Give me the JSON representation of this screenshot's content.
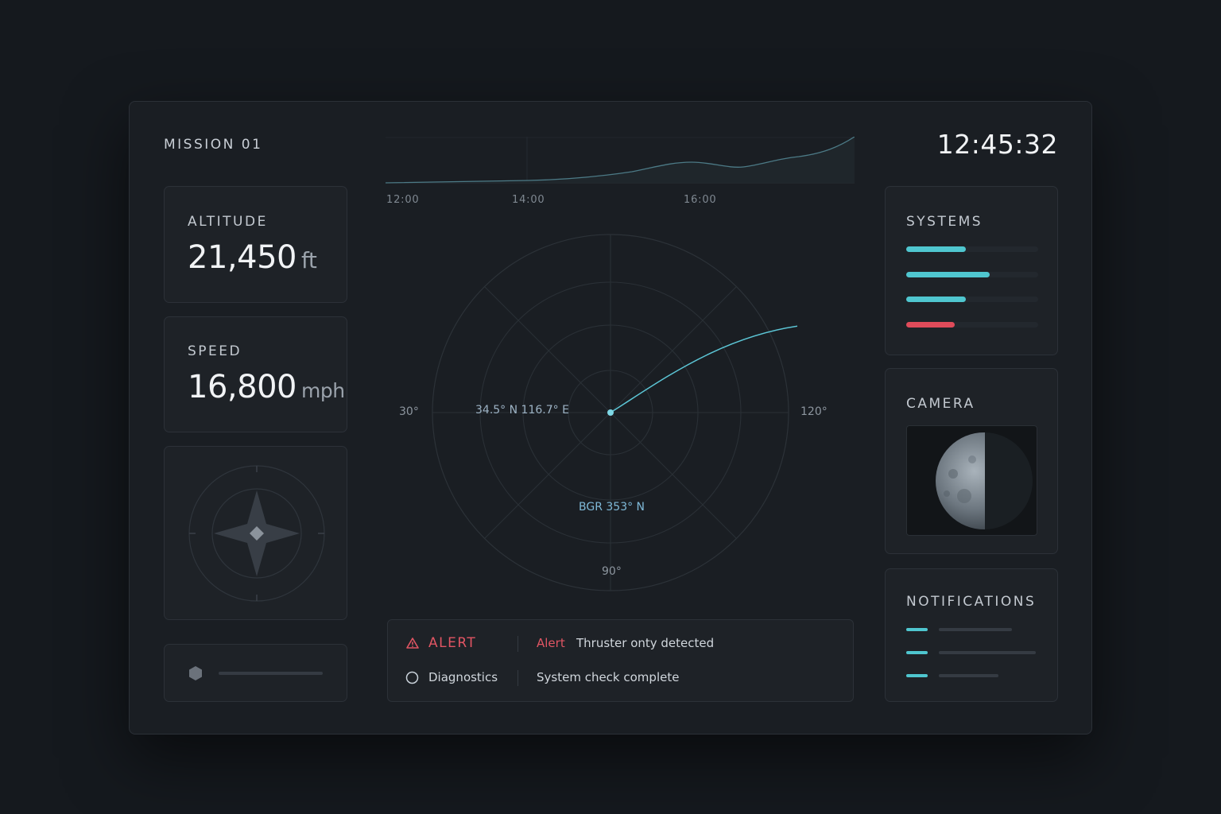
{
  "mission": {
    "title": "MISSION 01"
  },
  "clock": "12:45:32",
  "altitude": {
    "label": "ALTITUDE",
    "value": "21,450",
    "unit": "ft"
  },
  "speed": {
    "label": "SPEED",
    "value": "16,800",
    "unit": "mph"
  },
  "trend": {
    "ticks": [
      "12:00",
      "14:00",
      "16:00"
    ]
  },
  "radar": {
    "labels": {
      "left": "30°",
      "right": "120°",
      "bottom": "90°"
    },
    "coordinates": "34.5° N 116.7° E",
    "bearing": "BGR 353° N"
  },
  "alerts": [
    {
      "icon": "warning-icon",
      "category": "ALERT",
      "tag": "Alert",
      "message": "Thruster onty detected",
      "color": "#e05563"
    },
    {
      "icon": "circle-icon",
      "category": "Diagnostics",
      "tag": "",
      "message": "System check complete",
      "color": "#c9d2da"
    }
  ],
  "systems": {
    "label": "SYSTEMS",
    "levels": [
      {
        "fraction": 0.45,
        "color": "#4fc6cf"
      },
      {
        "fraction": 0.63,
        "color": "#4fc6cf"
      },
      {
        "fraction": 0.45,
        "color": "#4fc6cf"
      },
      {
        "fraction": 0.37,
        "color": "#e04b5a"
      }
    ]
  },
  "camera": {
    "label": "CAMERA"
  },
  "notifications": {
    "label": "NOTIFICATIONS",
    "count": 3
  },
  "colors": {
    "accent": "#4fc6cf",
    "alert": "#e05563",
    "background": "#15191e",
    "panel": "#1a1e23"
  }
}
